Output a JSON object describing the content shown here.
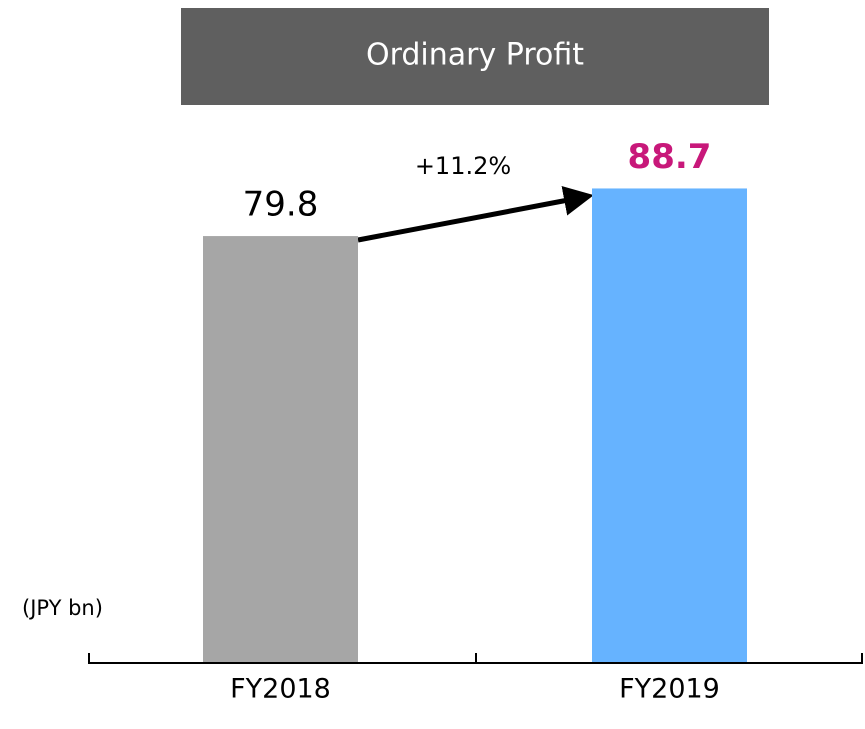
{
  "chart_data": {
    "type": "bar",
    "title": "Ordinary Profit",
    "unit_label": "(JPY bn)",
    "annotation": "+11.2%",
    "categories": [
      "FY2018",
      "FY2019"
    ],
    "values": [
      79.8,
      88.7
    ],
    "colors": [
      "#a6a6a6",
      "#66b3ff"
    ],
    "label_colors": [
      "#000000",
      "#c8187a"
    ],
    "ylim": [
      0,
      100
    ]
  }
}
